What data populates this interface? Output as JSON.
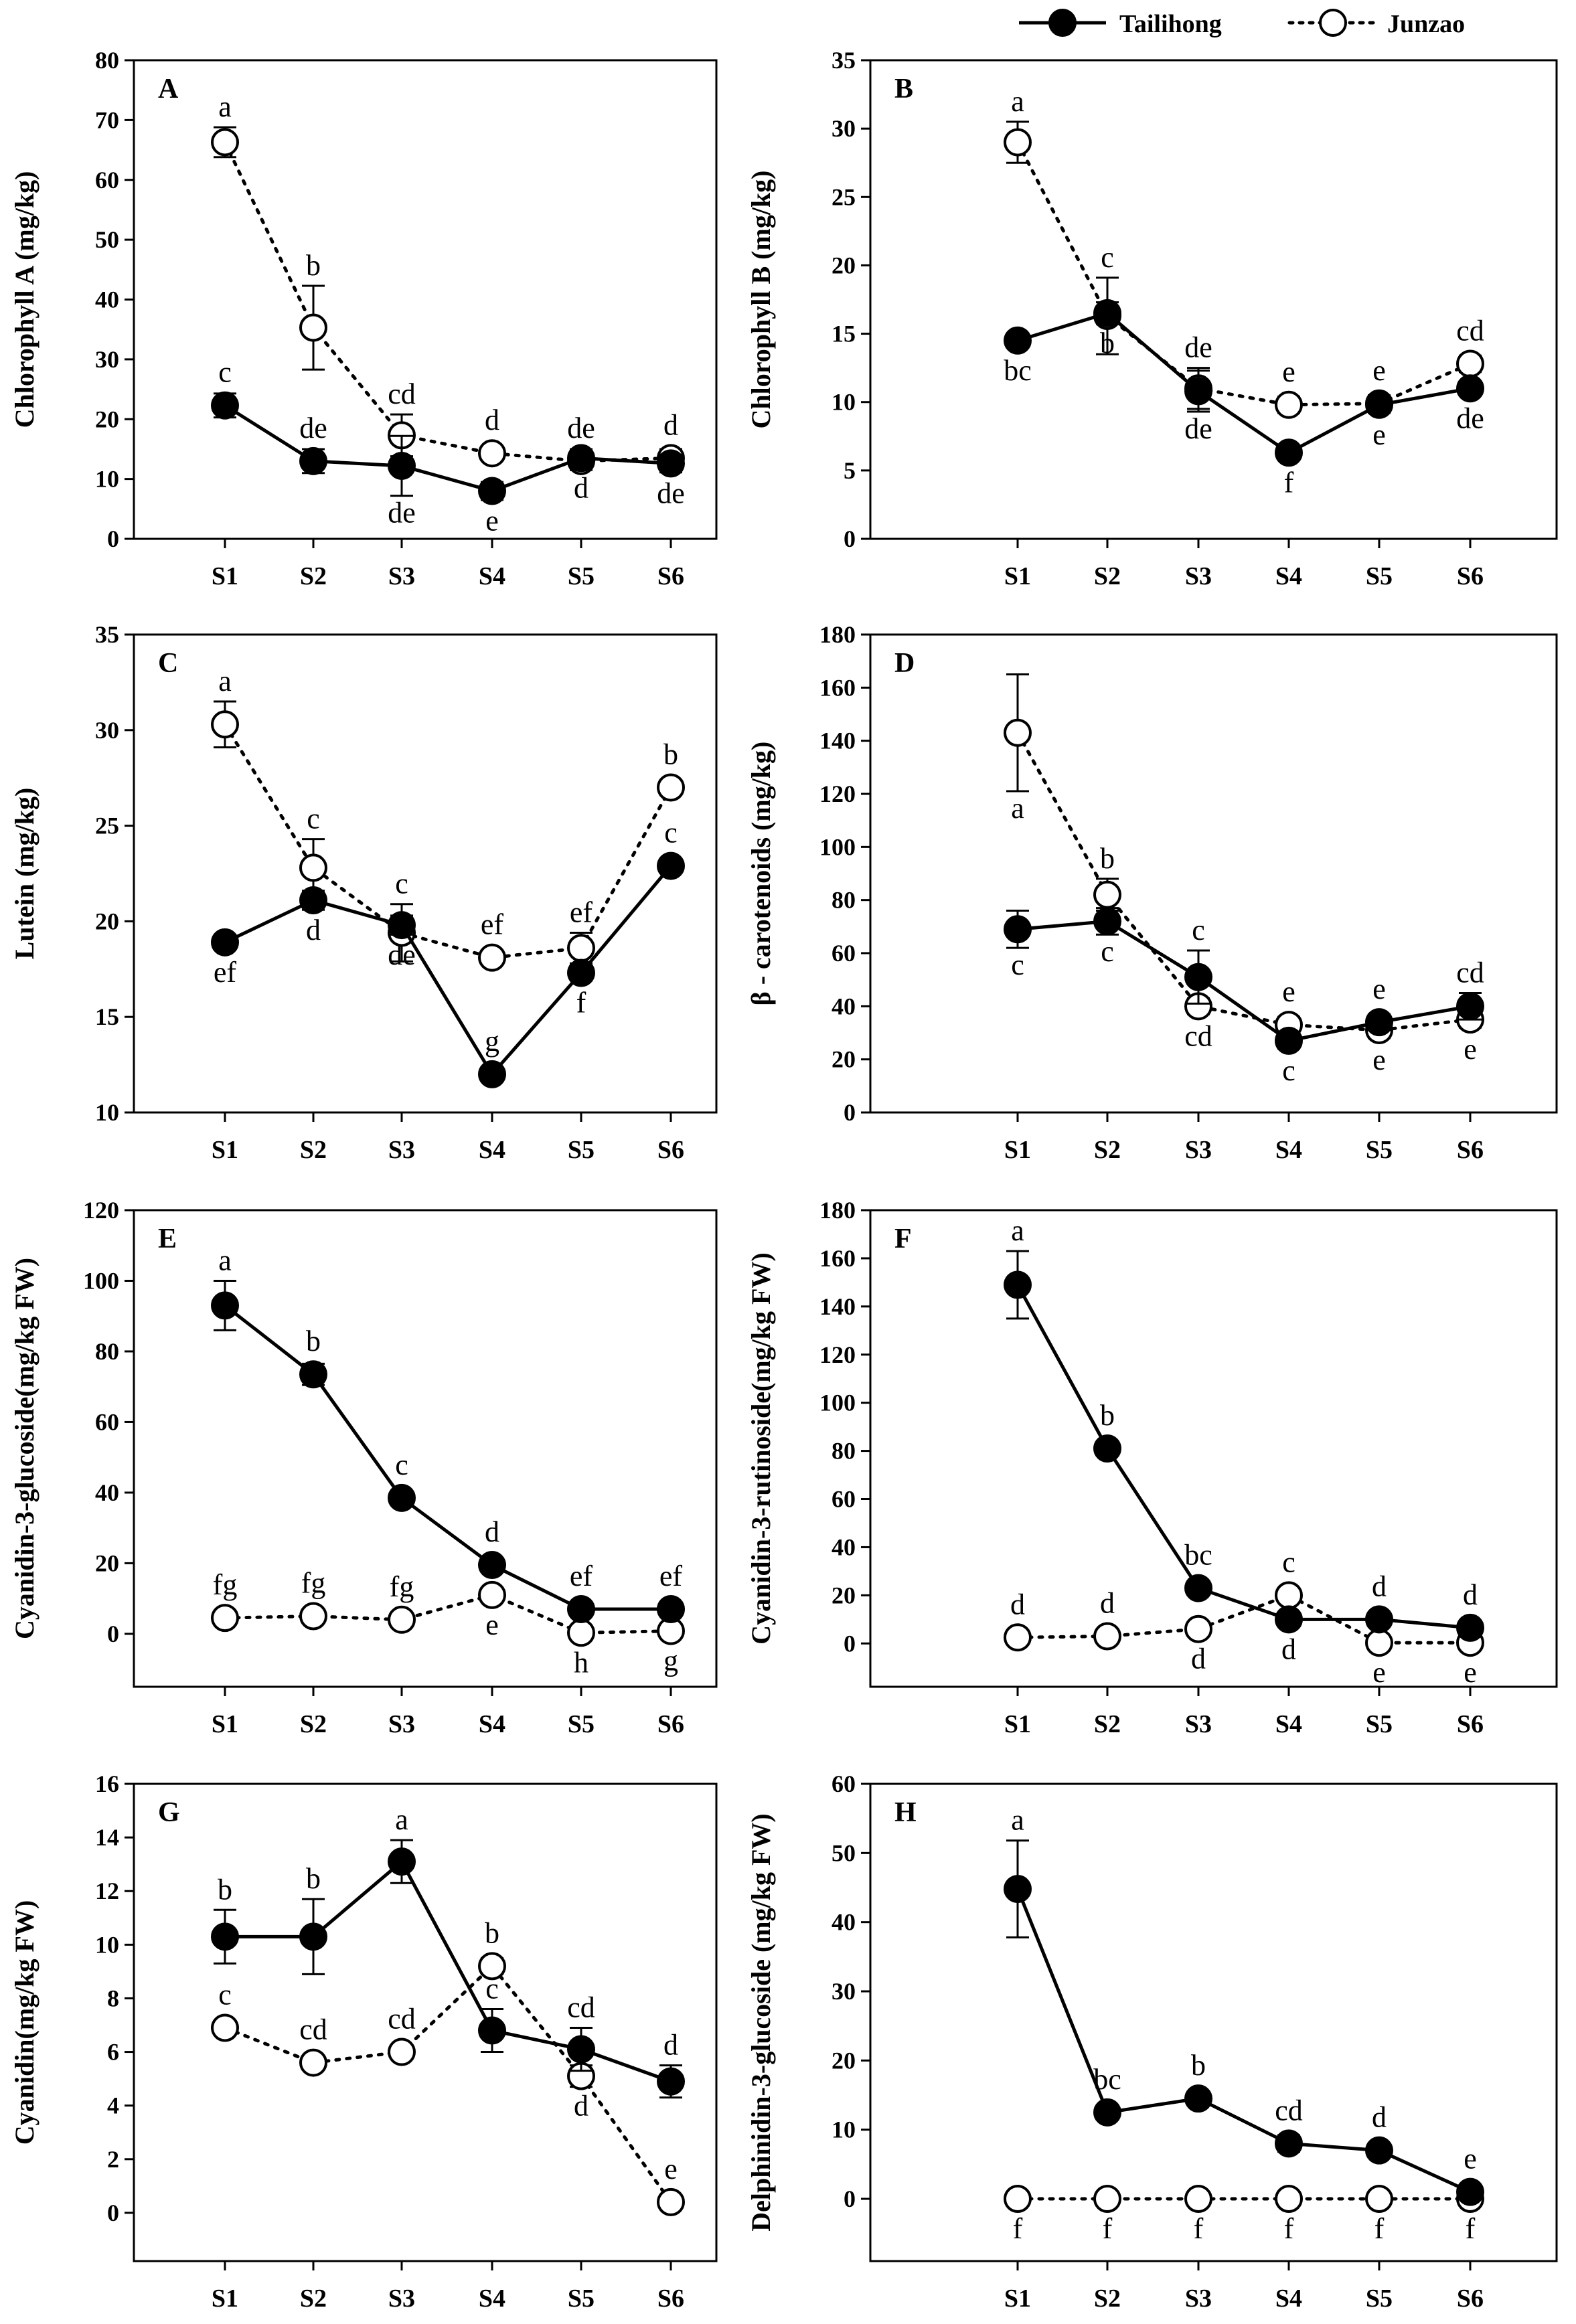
{
  "legend": {
    "series": [
      {
        "name": "Tailihong",
        "marker": "filled",
        "line": "solid"
      },
      {
        "name": "Junzao",
        "marker": "open",
        "line": "dotted"
      }
    ]
  },
  "colors": {
    "ink": "#000000",
    "open_fill": "#ffffff",
    "background": "#ffffff"
  },
  "chart_data": [
    {
      "id": "A",
      "letter": "A",
      "type": "line",
      "ylabel": "Chlorophyll A (mg/kg)",
      "categories": [
        "S1",
        "S2",
        "S3",
        "S4",
        "S5",
        "S6"
      ],
      "ylim": [
        0,
        80
      ],
      "yticks": [
        0,
        10,
        20,
        30,
        40,
        50,
        60,
        70,
        80
      ],
      "series": [
        {
          "name": "Tailihong",
          "values": [
            22.3,
            13.0,
            12.2,
            8.0,
            13.5,
            12.6
          ],
          "errors": [
            2.0,
            2.0,
            5.0,
            1.5,
            1.5,
            1.5
          ],
          "labels": [
            "c",
            "de",
            "de",
            "e",
            "d",
            "de"
          ],
          "label_pos": [
            "above",
            "above",
            "below",
            "below",
            "below",
            "below"
          ]
        },
        {
          "name": "Junzao",
          "values": [
            66.3,
            35.3,
            17.3,
            14.3,
            13.0,
            13.5
          ],
          "errors": [
            2.5,
            7.0,
            3.5,
            1.0,
            1.5,
            1.5
          ],
          "labels": [
            "a",
            "b",
            "cd",
            "d",
            "de",
            "d"
          ],
          "label_pos": [
            "above",
            "above",
            "above",
            "above",
            "above",
            "above"
          ]
        }
      ]
    },
    {
      "id": "B",
      "letter": "B",
      "type": "line",
      "ylabel": "Chlorophyll B (mg/kg)",
      "categories": [
        "S1",
        "S2",
        "S3",
        "S4",
        "S5",
        "S6"
      ],
      "ylim": [
        0,
        35
      ],
      "yticks": [
        0,
        5,
        10,
        15,
        20,
        25,
        30,
        35
      ],
      "series": [
        {
          "name": "Tailihong",
          "values": [
            14.5,
            16.5,
            10.8,
            6.3,
            9.8,
            11.0
          ],
          "errors": [
            0.5,
            0.8,
            1.5,
            0.5,
            0.6,
            0.5
          ],
          "labels": [
            "bc",
            "b",
            "de",
            "f",
            "e",
            "de"
          ],
          "label_pos": [
            "below",
            "below",
            "below",
            "below",
            "below",
            "below"
          ]
        },
        {
          "name": "Junzao",
          "values": [
            29.0,
            16.3,
            11.0,
            9.8,
            9.9,
            12.8
          ],
          "errors": [
            1.5,
            2.8,
            1.5,
            0.6,
            0.6,
            0.6
          ],
          "labels": [
            "a",
            "c",
            "de",
            "e",
            "e",
            "cd"
          ],
          "label_pos": [
            "above",
            "above",
            "above",
            "above",
            "above",
            "above"
          ]
        }
      ]
    },
    {
      "id": "C",
      "letter": "C",
      "type": "line",
      "ylabel": "Lutein (mg/kg)",
      "categories": [
        "S1",
        "S2",
        "S3",
        "S4",
        "S5",
        "S6"
      ],
      "ylim": [
        10,
        35
      ],
      "yticks": [
        10,
        15,
        20,
        25,
        30,
        35
      ],
      "series": [
        {
          "name": "Tailihong",
          "values": [
            18.9,
            21.1,
            19.8,
            12.0,
            17.3,
            22.9
          ],
          "errors": [
            0.3,
            0.5,
            0.5,
            0.3,
            0.4,
            0.3
          ],
          "labels": [
            "ef",
            "d",
            "de",
            "g",
            "f",
            "c"
          ],
          "label_pos": [
            "below",
            "below",
            "below",
            "above",
            "below",
            "above"
          ]
        },
        {
          "name": "Junzao",
          "values": [
            30.3,
            22.8,
            19.4,
            18.1,
            18.6,
            27.0
          ],
          "errors": [
            1.2,
            1.5,
            1.5,
            0.3,
            0.8,
            0.4
          ],
          "labels": [
            "a",
            "c",
            "c",
            "ef",
            "ef",
            "b"
          ],
          "label_pos": [
            "above",
            "above",
            "above",
            "above",
            "above",
            "above"
          ]
        }
      ]
    },
    {
      "id": "D",
      "letter": "D",
      "type": "line",
      "ylabel": "β - carotenoids (mg/kg)",
      "categories": [
        "S1",
        "S2",
        "S3",
        "S4",
        "S5",
        "S6"
      ],
      "ylim": [
        0,
        180
      ],
      "yticks": [
        0,
        20,
        40,
        60,
        80,
        100,
        120,
        140,
        160,
        180
      ],
      "series": [
        {
          "name": "Tailihong",
          "values": [
            69,
            72,
            51,
            27,
            34,
            40
          ],
          "errors": [
            7,
            5,
            10,
            3,
            3,
            5
          ],
          "labels": [
            "c",
            "c",
            "c",
            "c",
            "e",
            "cd"
          ],
          "label_pos": [
            "below",
            "below",
            "above",
            "below",
            "above",
            "above"
          ]
        },
        {
          "name": "Junzao",
          "values": [
            143,
            82,
            40,
            33,
            31,
            35
          ],
          "errors": [
            22,
            6,
            3,
            3,
            3,
            3
          ],
          "labels": [
            "a",
            "b",
            "cd",
            "e",
            "e",
            "e"
          ],
          "label_pos": [
            "below",
            "above",
            "below",
            "above",
            "below",
            "below"
          ]
        }
      ]
    },
    {
      "id": "E",
      "letter": "E",
      "type": "line",
      "ylabel": "Cyanidin-3-glucoside(mg/kg FW)",
      "categories": [
        "S1",
        "S2",
        "S3",
        "S4",
        "S5",
        "S6"
      ],
      "ylim": [
        -15,
        120
      ],
      "yticks": [
        0,
        20,
        40,
        60,
        80,
        100,
        120
      ],
      "series": [
        {
          "name": "Tailihong",
          "values": [
            93,
            73.5,
            38.5,
            19.5,
            7.0,
            7.0
          ],
          "errors": [
            7,
            3,
            2,
            2,
            1,
            1
          ],
          "labels": [
            "a",
            "b",
            "c",
            "d",
            "ef",
            "ef"
          ],
          "label_pos": [
            "above",
            "above",
            "above",
            "above",
            "above",
            "above"
          ]
        },
        {
          "name": "Junzao",
          "values": [
            4.5,
            5.0,
            4.0,
            11.0,
            0.3,
            0.8
          ],
          "errors": [
            0.5,
            0.5,
            0.5,
            1.5,
            0.2,
            0.2
          ],
          "labels": [
            "fg",
            "fg",
            "fg",
            "e",
            "h",
            "g"
          ],
          "label_pos": [
            "above",
            "above",
            "above",
            "below",
            "below",
            "below"
          ]
        }
      ]
    },
    {
      "id": "F",
      "letter": "F",
      "type": "line",
      "ylabel": "Cyanidin-3-rutinoside(mg/kg FW)",
      "categories": [
        "S1",
        "S2",
        "S3",
        "S4",
        "S5",
        "S6"
      ],
      "ylim": [
        -18,
        180
      ],
      "yticks": [
        0,
        20,
        40,
        60,
        80,
        100,
        120,
        140,
        160,
        180
      ],
      "series": [
        {
          "name": "Tailihong",
          "values": [
            149,
            81,
            23,
            10,
            10,
            6.5
          ],
          "errors": [
            14,
            1.5,
            1.5,
            1.5,
            1.5,
            1
          ],
          "labels": [
            "a",
            "b",
            "bc",
            "d",
            "d",
            "d"
          ],
          "label_pos": [
            "above",
            "above",
            "above",
            "below",
            "above",
            "above"
          ]
        },
        {
          "name": "Junzao",
          "values": [
            2.5,
            3.0,
            6.0,
            20.0,
            0.3,
            0.3
          ],
          "errors": [
            0.5,
            0.5,
            0.5,
            1.5,
            0.2,
            0.2
          ],
          "labels": [
            "d",
            "d",
            "d",
            "c",
            "e",
            "e"
          ],
          "label_pos": [
            "above",
            "above",
            "below",
            "above",
            "below",
            "below"
          ]
        }
      ]
    },
    {
      "id": "G",
      "letter": "G",
      "type": "line",
      "ylabel": "Cyanidin(mg/kg FW)",
      "categories": [
        "S1",
        "S2",
        "S3",
        "S4",
        "S5",
        "S6"
      ],
      "ylim": [
        -1.8,
        16
      ],
      "yticks": [
        0,
        2,
        4,
        6,
        8,
        10,
        12,
        14,
        16
      ],
      "series": [
        {
          "name": "Tailihong",
          "values": [
            10.3,
            10.3,
            13.1,
            6.8,
            6.1,
            4.9
          ],
          "errors": [
            1.0,
            1.4,
            0.8,
            0.8,
            0.8,
            0.6
          ],
          "labels": [
            "b",
            "b",
            "a",
            "c",
            "cd",
            "d"
          ],
          "label_pos": [
            "above",
            "above",
            "above",
            "above",
            "above",
            "above"
          ]
        },
        {
          "name": "Junzao",
          "values": [
            6.9,
            5.6,
            6.0,
            9.2,
            5.1,
            0.4
          ],
          "errors": [
            0.2,
            0.2,
            0.2,
            0.3,
            0.4,
            0.1
          ],
          "labels": [
            "c",
            "cd",
            "cd",
            "b",
            "d",
            "e"
          ],
          "label_pos": [
            "above",
            "above",
            "above",
            "above",
            "below",
            "above"
          ]
        }
      ]
    },
    {
      "id": "H",
      "letter": "H",
      "type": "line",
      "ylabel": "Delphinidin-3-glucoside (mg/kg FW)",
      "categories": [
        "S1",
        "S2",
        "S3",
        "S4",
        "S5",
        "S6"
      ],
      "ylim": [
        -9,
        60
      ],
      "yticks": [
        0,
        10,
        20,
        30,
        40,
        50,
        60
      ],
      "series": [
        {
          "name": "Tailihong",
          "values": [
            44.8,
            12.5,
            14.5,
            8.0,
            7.0,
            1.0
          ],
          "errors": [
            7,
            0.8,
            0.8,
            1.2,
            0.8,
            0.3
          ],
          "labels": [
            "a",
            "bc",
            "b",
            "cd",
            "d",
            "e"
          ],
          "label_pos": [
            "above",
            "above",
            "above",
            "above",
            "above",
            "above"
          ]
        },
        {
          "name": "Junzao",
          "values": [
            0,
            0,
            0,
            0,
            0,
            0
          ],
          "errors": [
            0,
            0,
            0,
            0,
            0,
            0
          ],
          "labels": [
            "f",
            "f",
            "f",
            "f",
            "f",
            "f"
          ],
          "label_pos": [
            "below",
            "below",
            "below",
            "below",
            "below",
            "below"
          ]
        }
      ]
    }
  ]
}
